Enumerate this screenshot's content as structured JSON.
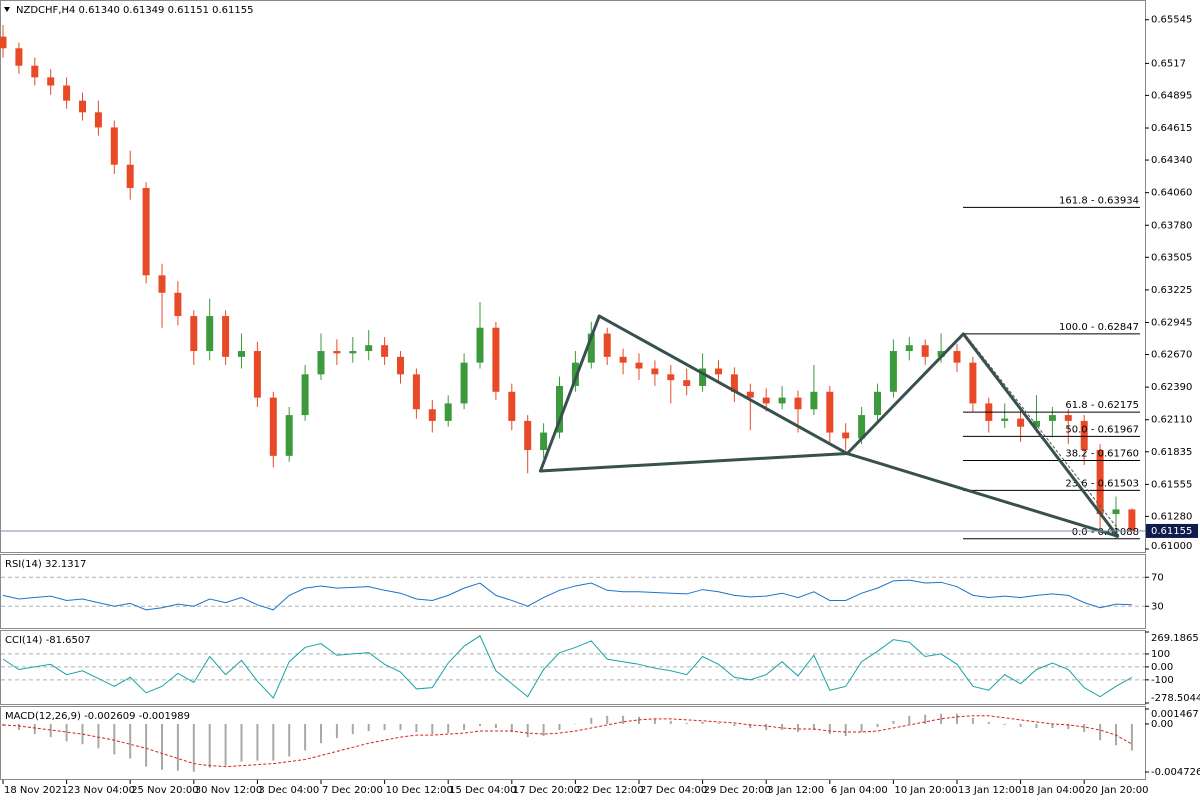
{
  "chart_data": [
    {
      "type": "candlestick",
      "title": "NZDCHF,H4  0.61340 0.61349 0.61151 0.61155",
      "categories": [
        "18 Nov 2021",
        null,
        null,
        null,
        "23 Nov 04:00",
        null,
        null,
        null,
        "25 Nov 20:00",
        null,
        null,
        null,
        "30 Nov 12:00",
        null,
        null,
        null,
        "3 Dec 04:00",
        null,
        null,
        null,
        "7 Dec 20:00",
        null,
        null,
        null,
        "10 Dec 12:00",
        null,
        null,
        null,
        "15 Dec 04:00",
        null,
        null,
        null,
        "17 Dec 20:00",
        null,
        null,
        null,
        "22 Dec 12:00",
        null,
        null,
        null,
        "27 Dec 04:00",
        null,
        null,
        null,
        "29 Dec 20:00",
        null,
        null,
        null,
        "3 Jan 12:00",
        null,
        null,
        null,
        "6 Jan 04:00",
        null,
        null,
        null,
        "10 Jan 20:00",
        null,
        null,
        null,
        "13 Jan 12:00",
        null,
        null,
        null,
        "18 Jan 04:00",
        null,
        null,
        null,
        "20 Jan 20:00",
        null,
        null,
        null
      ],
      "open": [
        0.654,
        0.653,
        0.6515,
        0.6505,
        0.6498,
        0.6485,
        0.6475,
        0.6462,
        0.643,
        0.641,
        0.6335,
        0.632,
        0.63,
        0.627,
        0.63,
        0.6265,
        0.627,
        0.623,
        0.618,
        0.6215,
        0.625,
        0.627,
        0.6268,
        0.627,
        0.6275,
        0.6265,
        0.625,
        0.622,
        0.621,
        0.6225,
        0.626,
        0.629,
        0.6235,
        0.621,
        0.6185,
        0.62,
        0.624,
        0.626,
        0.6285,
        0.6265,
        0.626,
        0.6255,
        0.625,
        0.6245,
        0.624,
        0.6255,
        0.625,
        0.6235,
        0.623,
        0.6225,
        0.623,
        0.622,
        0.6235,
        0.62,
        0.6195,
        0.6215,
        0.6235,
        0.627,
        0.6275,
        0.6265,
        0.627,
        0.626,
        0.6225,
        0.621,
        0.6212,
        0.6205,
        0.621,
        0.6215,
        0.621,
        0.6185,
        0.613,
        0.6134
      ],
      "high": [
        0.655,
        0.6535,
        0.6522,
        0.6512,
        0.6505,
        0.6492,
        0.6485,
        0.6468,
        0.6442,
        0.6415,
        0.6345,
        0.633,
        0.6305,
        0.6315,
        0.6305,
        0.6285,
        0.6278,
        0.6235,
        0.6222,
        0.6258,
        0.6285,
        0.628,
        0.6282,
        0.6288,
        0.6282,
        0.627,
        0.6255,
        0.6228,
        0.6232,
        0.6268,
        0.6312,
        0.6295,
        0.6242,
        0.6215,
        0.6208,
        0.6248,
        0.627,
        0.6295,
        0.629,
        0.6272,
        0.6268,
        0.6262,
        0.6258,
        0.6255,
        0.6268,
        0.6262,
        0.6256,
        0.6242,
        0.6238,
        0.624,
        0.6236,
        0.6258,
        0.624,
        0.6208,
        0.6222,
        0.6242,
        0.628,
        0.6282,
        0.628,
        0.6285,
        0.6276,
        0.6265,
        0.623,
        0.6225,
        0.622,
        0.6232,
        0.6222,
        0.622,
        0.6215,
        0.619,
        0.6145,
        0.61349
      ],
      "low": [
        0.6522,
        0.6508,
        0.6498,
        0.649,
        0.6478,
        0.6468,
        0.6455,
        0.6422,
        0.64,
        0.6328,
        0.629,
        0.6292,
        0.6258,
        0.6262,
        0.6258,
        0.6255,
        0.6222,
        0.617,
        0.6175,
        0.621,
        0.6245,
        0.6258,
        0.626,
        0.6262,
        0.6258,
        0.6242,
        0.6212,
        0.62,
        0.6205,
        0.622,
        0.6255,
        0.6228,
        0.6202,
        0.6165,
        0.6178,
        0.6195,
        0.6235,
        0.6255,
        0.6258,
        0.625,
        0.6245,
        0.624,
        0.6225,
        0.6232,
        0.6235,
        0.6242,
        0.6226,
        0.6202,
        0.6218,
        0.622,
        0.62,
        0.6215,
        0.6192,
        0.6185,
        0.619,
        0.621,
        0.623,
        0.6262,
        0.6258,
        0.626,
        0.6252,
        0.6218,
        0.62,
        0.6204,
        0.6192,
        0.62,
        0.6196,
        0.619,
        0.6172,
        0.6118,
        0.6109,
        0.61151
      ],
      "close": [
        0.653,
        0.6515,
        0.6505,
        0.6498,
        0.6485,
        0.6475,
        0.6462,
        0.643,
        0.641,
        0.6335,
        0.632,
        0.63,
        0.627,
        0.63,
        0.6265,
        0.627,
        0.623,
        0.618,
        0.6215,
        0.625,
        0.627,
        0.6268,
        0.627,
        0.6275,
        0.6265,
        0.625,
        0.622,
        0.621,
        0.6225,
        0.626,
        0.629,
        0.6235,
        0.621,
        0.6185,
        0.62,
        0.624,
        0.626,
        0.6285,
        0.6265,
        0.626,
        0.6255,
        0.625,
        0.6245,
        0.624,
        0.6255,
        0.625,
        0.6235,
        0.623,
        0.6225,
        0.623,
        0.622,
        0.6235,
        0.62,
        0.6195,
        0.6215,
        0.6235,
        0.627,
        0.6275,
        0.6265,
        0.627,
        0.626,
        0.6225,
        0.621,
        0.6212,
        0.6205,
        0.621,
        0.6215,
        0.621,
        0.6185,
        0.613,
        0.6134,
        0.61155
      ],
      "up_color": "#3c9a3c",
      "down_color": "#e84a27",
      "ylim": [
        0.61,
        0.6568
      ],
      "yticks": [
        0.65545,
        0.6517,
        0.64895,
        0.64615,
        {
          "value": 0.6434,
          "label": "0.64340"
        },
        {
          "value": 0.6406,
          "label": "0.64060"
        },
        {
          "value": 0.6378,
          "label": "0.63780"
        },
        0.63505,
        0.63225,
        0.62945,
        {
          "value": 0.6267,
          "label": "0.62670"
        },
        {
          "value": 0.6239,
          "label": "0.62390"
        },
        {
          "value": 0.6211,
          "label": "0.62110"
        },
        0.61835,
        0.61555,
        {
          "value": 0.6128,
          "label": "0.61280"
        },
        {
          "value": 0.61,
          "label": "0.61000"
        }
      ],
      "current_price": 0.61155,
      "fib_levels": [
        {
          "label": "161.8 - 0.63934",
          "value": 0.63934
        },
        {
          "label": "100.0 - 0.62847",
          "value": 0.62847
        },
        {
          "label": "61.8 - 0.62175",
          "value": 0.62175
        },
        {
          "label": "50.0 - 0.61967",
          "value": 0.61967
        },
        {
          "label": "38.2 - 0.61760",
          "value": 0.6176
        },
        {
          "label": "23.6 - 0.61503",
          "value": 0.61503
        },
        {
          "label": "0.0 - 0.61088",
          "value": 0.61088
        }
      ],
      "pattern_color": "#37514f",
      "pattern_points": [
        {
          "x": 33.8,
          "y": 0.6167
        },
        {
          "x": 37.5,
          "y": 0.63
        },
        {
          "x": 53.1,
          "y": 0.6182
        },
        {
          "x": 60.4,
          "y": 0.62847
        },
        {
          "x": 70.1,
          "y": 0.6111
        }
      ]
    },
    {
      "type": "line",
      "title": "RSI(14) 32.1317",
      "color": "#1e73c8",
      "grid": "dashed",
      "values": [
        45,
        40,
        42,
        44,
        38,
        40,
        35,
        30,
        34,
        25,
        28,
        33,
        30,
        40,
        35,
        42,
        32,
        25,
        45,
        55,
        58,
        55,
        56,
        57,
        52,
        48,
        40,
        38,
        45,
        55,
        62,
        45,
        38,
        30,
        42,
        52,
        58,
        62,
        52,
        50,
        50,
        49,
        48,
        47,
        53,
        50,
        45,
        43,
        44,
        48,
        42,
        50,
        38,
        38,
        48,
        55,
        65,
        66,
        62,
        63,
        57,
        45,
        42,
        44,
        42,
        45,
        47,
        45,
        35,
        28,
        33,
        32.1317
      ],
      "ylim": [
        0,
        100
      ],
      "yticks": [
        70,
        30
      ]
    },
    {
      "type": "line",
      "title": "CCI(14) -81.6507",
      "color": "#1aa3a3",
      "grid": "dashed",
      "values": [
        60,
        -20,
        0,
        20,
        -60,
        -30,
        -90,
        -150,
        -80,
        -200,
        -150,
        -50,
        -120,
        80,
        -60,
        50,
        -110,
        -240,
        40,
        150,
        180,
        90,
        100,
        110,
        20,
        -40,
        -170,
        -160,
        30,
        160,
        240,
        -30,
        -130,
        -230,
        -20,
        110,
        150,
        200,
        60,
        40,
        20,
        -10,
        -30,
        -60,
        80,
        20,
        -80,
        -100,
        -60,
        40,
        -70,
        90,
        -180,
        -150,
        40,
        120,
        210,
        190,
        80,
        100,
        20,
        -150,
        -180,
        -60,
        -130,
        -20,
        30,
        -20,
        -160,
        -230,
        -150,
        -81.6507
      ],
      "ylim": [
        -278.5044,
        269.1865
      ],
      "yticks": [
        269.1865,
        100,
        {
          "value": 0,
          "label": "0.00"
        },
        -100,
        -278.5044
      ]
    },
    {
      "type": "macd",
      "title": "MACD(12,26,9) -0.002609 -0.001989",
      "histogram_color": "#a8a8a8",
      "signal_color": "#d62020",
      "histogram": [
        -0.0002,
        -0.0006,
        -0.001,
        -0.0013,
        -0.0017,
        -0.002,
        -0.0024,
        -0.003,
        -0.0034,
        -0.0042,
        -0.0045,
        -0.0046,
        -0.0047,
        -0.0043,
        -0.0041,
        -0.0037,
        -0.0036,
        -0.0036,
        -0.0032,
        -0.0026,
        -0.0019,
        -0.0014,
        -0.001,
        -0.0007,
        -0.0006,
        -0.0006,
        -0.0008,
        -0.001,
        -0.0009,
        -0.0006,
        -0.0002,
        -0.0004,
        -0.0008,
        -0.0013,
        -0.0012,
        -0.0006,
        0.0,
        0.0006,
        0.0008,
        0.0008,
        0.0007,
        0.0005,
        0.0003,
        0.0001,
        0.0002,
        0.0001,
        -0.0002,
        -0.0004,
        -0.0006,
        -0.0006,
        -0.0008,
        -0.0006,
        -0.001,
        -0.0012,
        -0.0008,
        -0.0003,
        0.0003,
        0.0008,
        0.0009,
        0.001,
        0.001,
        0.0006,
        0.0002,
        -0.0001,
        -0.0003,
        -0.0004,
        -0.0004,
        -0.0005,
        -0.0008,
        -0.0016,
        -0.0021,
        -0.002609
      ],
      "signal": [
        -0.0001,
        -0.0002,
        -0.0004,
        -0.0006,
        -0.0008,
        -0.001,
        -0.0013,
        -0.0016,
        -0.002,
        -0.0024,
        -0.0029,
        -0.0034,
        -0.0039,
        -0.0041,
        -0.0042,
        -0.0041,
        -0.004,
        -0.0039,
        -0.0037,
        -0.0035,
        -0.0031,
        -0.0027,
        -0.0023,
        -0.0019,
        -0.0016,
        -0.0013,
        -0.0011,
        -0.0011,
        -0.001,
        -0.0009,
        -0.0007,
        -0.0007,
        -0.0007,
        -0.0009,
        -0.001,
        -0.0009,
        -0.0007,
        -0.0004,
        -0.0001,
        0.0002,
        0.0004,
        0.0005,
        0.0005,
        0.0004,
        0.0003,
        0.0002,
        0.0001,
        -0.0001,
        -0.0002,
        -0.0004,
        -0.0005,
        -0.0005,
        -0.0007,
        -0.0008,
        -0.0008,
        -0.0007,
        -0.0004,
        -0.0001,
        0.0002,
        0.0005,
        0.0007,
        0.0008,
        0.0008,
        0.0006,
        0.0004,
        0.0002,
        0.0,
        -0.0001,
        -0.0003,
        -0.0006,
        -0.0011,
        -0.001989
      ],
      "ylim": [
        -0.004726,
        0.001467
      ],
      "yticks": [
        0.001467,
        {
          "value": 0,
          "label": "0.00"
        },
        -0.004726
      ]
    }
  ]
}
